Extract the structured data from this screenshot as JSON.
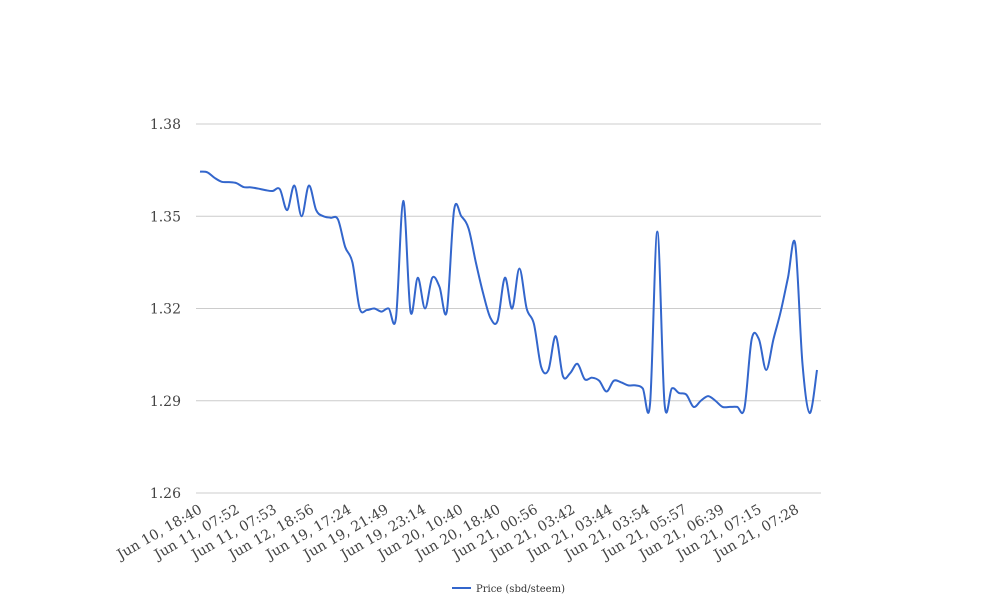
{
  "chart_data": {
    "type": "line",
    "title": "",
    "xlabel": "",
    "ylabel": "",
    "ylim": [
      1.26,
      1.38
    ],
    "yticks": [
      "1.26",
      "1.29",
      "1.32",
      "1.35",
      "1.38"
    ],
    "ytick_values": [
      1.26,
      1.29,
      1.32,
      1.35,
      1.38
    ],
    "xtick_labels": [
      "Jun 10, 18:40",
      "Jun 11, 07:52",
      "Jun 11, 07:53",
      "Jun 12, 18:56",
      "Jun 19, 17:24",
      "Jun 19, 21:49",
      "Jun 19, 23:14",
      "Jun 20, 10:40",
      "Jun 20, 18:40",
      "Jun 21, 00:56",
      "Jun 21, 03:42",
      "Jun 21, 03:44",
      "Jun 21, 03:54",
      "Jun 21, 05:57",
      "Jun 21, 06:39",
      "Jun 21, 07:15",
      "Jun 21, 07:28"
    ],
    "grid": true,
    "legend_position": "bottom",
    "series": [
      {
        "name": "Price (sbd/steem)",
        "color": "#3366cc",
        "values": [
          1.3645,
          1.3643,
          1.3625,
          1.3612,
          1.3611,
          1.3608,
          1.3595,
          1.3594,
          1.359,
          1.3585,
          1.3582,
          1.3588,
          1.352,
          1.36,
          1.35,
          1.36,
          1.352,
          1.35,
          1.3495,
          1.349,
          1.34,
          1.335,
          1.32,
          1.3195,
          1.32,
          1.319,
          1.32,
          1.317,
          1.355,
          1.319,
          1.33,
          1.32,
          1.33,
          1.327,
          1.319,
          1.352,
          1.35,
          1.346,
          1.335,
          1.325,
          1.317,
          1.316,
          1.33,
          1.32,
          1.333,
          1.32,
          1.315,
          1.301,
          1.3,
          1.311,
          1.298,
          1.299,
          1.302,
          1.297,
          1.2975,
          1.2965,
          1.293,
          1.2965,
          1.296,
          1.295,
          1.295,
          1.294,
          1.289,
          1.345,
          1.289,
          1.294,
          1.2925,
          1.292,
          1.288,
          1.29,
          1.2915,
          1.29,
          1.288,
          1.288,
          1.288,
          1.2875,
          1.31,
          1.31,
          1.3,
          1.31,
          1.319,
          1.33,
          1.341,
          1.302,
          1.286,
          1.3
        ]
      }
    ]
  }
}
